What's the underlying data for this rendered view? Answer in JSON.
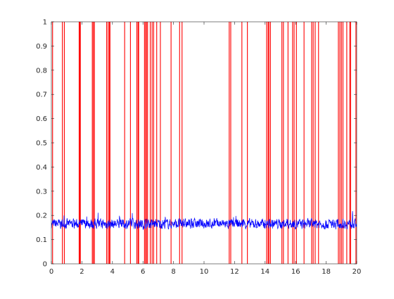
{
  "chart_data": {
    "type": "line",
    "title": "",
    "xlabel": "",
    "ylabel": "",
    "xlim": [
      0,
      20
    ],
    "ylim": [
      0,
      1
    ],
    "grid": false,
    "legend": null,
    "x_ticks": [
      "0",
      "2",
      "4",
      "6",
      "8",
      "10",
      "12",
      "14",
      "16",
      "18",
      "20"
    ],
    "y_ticks": [
      "0",
      "0.1",
      "0.2",
      "0.3",
      "0.4",
      "0.5",
      "0.6",
      "0.7",
      "0.8",
      "0.9",
      "1"
    ],
    "series": [
      {
        "kind": "noisy-line",
        "color": "#0000ff",
        "x_range": [
          0,
          20
        ],
        "mean": 0.165,
        "min": 0.12,
        "max": 0.245
      },
      {
        "kind": "vertical-lines",
        "color": "#ff0000",
        "y_range": [
          0,
          1
        ],
        "x": [
          0.08,
          0.72,
          0.85,
          1.82,
          1.86,
          1.9,
          2.68,
          2.75,
          2.82,
          3.62,
          3.72,
          3.8,
          3.84,
          4.8,
          5.18,
          5.6,
          5.68,
          5.72,
          6.1,
          6.18,
          6.22,
          6.3,
          6.48,
          6.6,
          6.7,
          6.9,
          7.14,
          7.84,
          8.4,
          8.56,
          11.65,
          11.75,
          12.48,
          12.84,
          14.1,
          14.2,
          14.25,
          14.35,
          15.1,
          15.2,
          15.5,
          15.8,
          15.9,
          16.05,
          16.55,
          17.05,
          17.15,
          17.28,
          17.5,
          18.8,
          18.9,
          19.0,
          19.1,
          19.35,
          19.55,
          19.6,
          19.95
        ]
      }
    ]
  }
}
